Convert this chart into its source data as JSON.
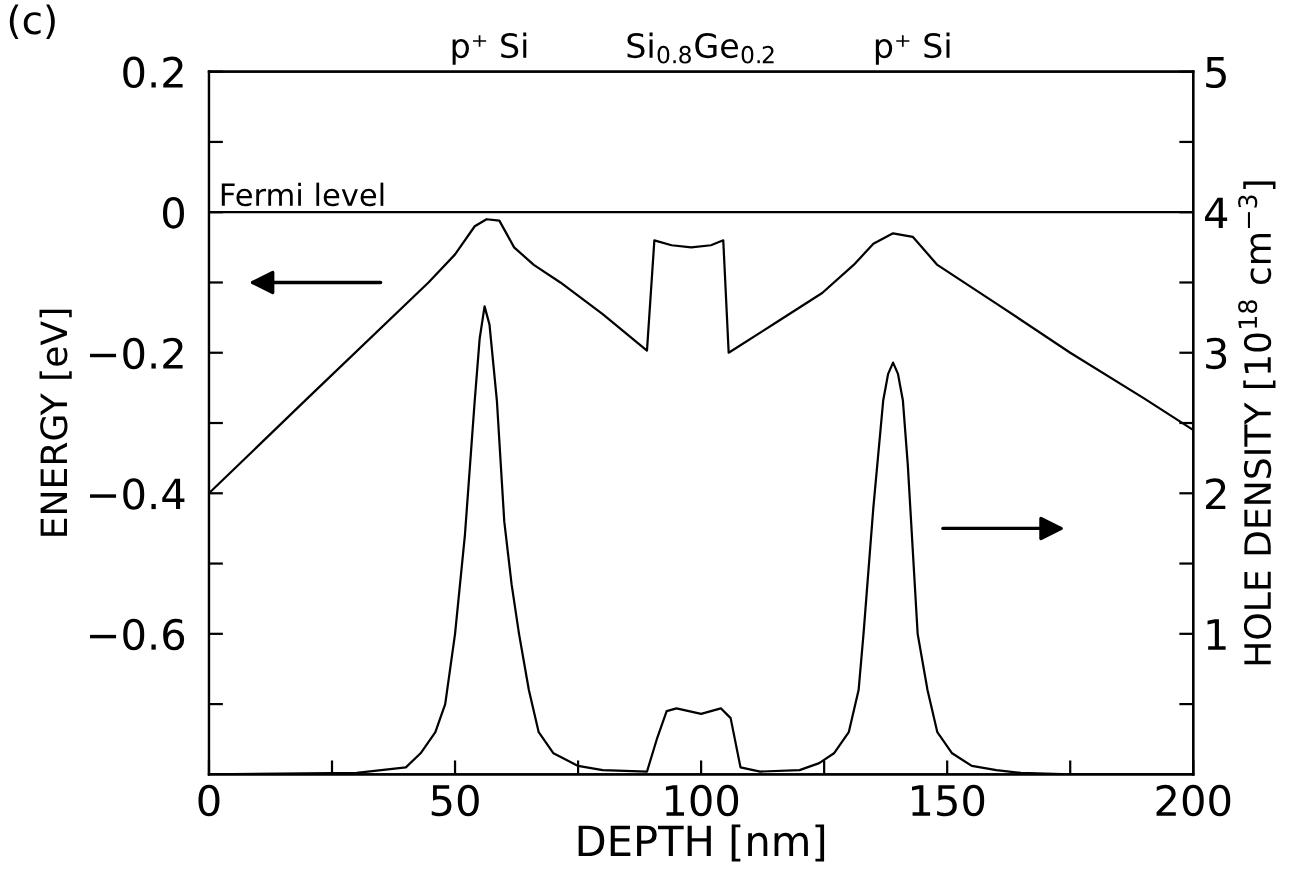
{
  "chart_data": {
    "type": "line",
    "xlabel": "DEPTH [nm]",
    "ylabel": "ENERGY [eV]",
    "y2label": "HOLE DENSITY [10$^{18}$ cm$^{−3}$]",
    "xlim": [
      0,
      200
    ],
    "ylim": [
      -0.8,
      0.2
    ],
    "y2lim": [
      0,
      5
    ],
    "xticks": [
      0,
      {
        "value": 25,
        "label": null
      },
      50,
      {
        "value": 75,
        "label": null
      },
      100,
      {
        "value": 125,
        "label": null
      },
      150,
      {
        "value": 175,
        "label": null
      },
      200
    ],
    "yticks": [
      0.2,
      {
        "value": 0.1,
        "label": null
      },
      0,
      {
        "value": -0.1,
        "label": null
      },
      {
        "value": -0.2,
        "label": "−0.2"
      },
      {
        "value": -0.3,
        "label": null
      },
      {
        "value": -0.4,
        "label": "−0.4"
      },
      {
        "value": -0.5,
        "label": null
      },
      {
        "value": -0.6,
        "label": "−0.6"
      },
      {
        "value": -0.7,
        "label": null
      }
    ],
    "y2ticks": [
      {
        "value": 0.5,
        "label": null
      },
      1,
      {
        "value": 1.5,
        "label": null
      },
      2,
      {
        "value": 2.5,
        "label": null
      },
      3,
      {
        "value": 3.5,
        "label": null
      },
      4,
      {
        "value": 4.5,
        "label": null
      },
      5
    ],
    "grid": false,
    "marker": "none",
    "line_style": "solid",
    "ref_lines": [
      {
        "axis": "y",
        "value": 0,
        "label": "Fermi level",
        "color": "#000000"
      }
    ],
    "annotations": [
      "(c)",
      "p⁺ Si",
      "Si$_{0.8}$Ge$_{0.2}$",
      "p⁺ Si"
    ],
    "series": [
      {
        "color": "#000000",
        "axis": "y",
        "x": [
          0,
          20,
          44.6,
          50,
          54,
          56.4,
          59,
          62,
          66,
          71.4,
          80,
          89,
          90.5,
          94,
          98,
          102,
          104.5,
          105.6,
          115,
          124.6,
          131,
          135,
          139,
          143,
          148,
          160,
          175,
          190,
          200
        ],
        "values": [
          -0.4,
          -0.265,
          -0.1,
          -0.06,
          -0.02,
          -0.01,
          -0.012,
          -0.05,
          -0.075,
          -0.1,
          -0.145,
          -0.197,
          -0.04,
          -0.047,
          -0.05,
          -0.047,
          -0.04,
          -0.2,
          -0.158,
          -0.115,
          -0.075,
          -0.045,
          -0.03,
          -0.035,
          -0.075,
          -0.13,
          -0.2,
          -0.265,
          -0.31
        ]
      },
      {
        "color": "#000000",
        "axis": "y2",
        "x": [
          0,
          30,
          40,
          43,
          46,
          48,
          50,
          52,
          54,
          55,
          56,
          57,
          58.5,
          60,
          61.5,
          63,
          65,
          67,
          70,
          75,
          80,
          89,
          91,
          93,
          95,
          100,
          104,
          106,
          108,
          112,
          120,
          124,
          127,
          130,
          132,
          133,
          135,
          137,
          138,
          139,
          140,
          141,
          142,
          144,
          146,
          148,
          151,
          155,
          160,
          165,
          175,
          200
        ],
        "values": [
          0,
          0.01,
          0.05,
          0.15,
          0.3,
          0.5,
          1.0,
          1.7,
          2.66,
          3.1,
          3.33,
          3.2,
          2.66,
          1.8,
          1.35,
          1.0,
          0.6,
          0.3,
          0.15,
          0.06,
          0.03,
          0.02,
          0.25,
          0.45,
          0.47,
          0.43,
          0.47,
          0.4,
          0.05,
          0.02,
          0.03,
          0.08,
          0.15,
          0.3,
          0.6,
          1.0,
          1.9,
          2.66,
          2.85,
          2.93,
          2.85,
          2.66,
          2.2,
          1.0,
          0.6,
          0.3,
          0.15,
          0.06,
          0.03,
          0.01,
          0.0,
          0
        ]
      }
    ]
  }
}
